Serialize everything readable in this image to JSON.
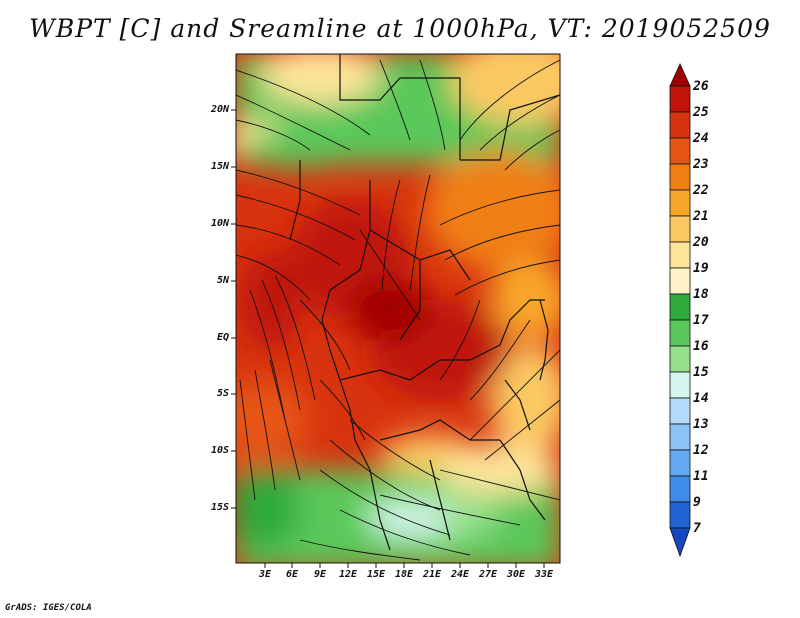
{
  "title": "WBPT [C] and Sreamline at 1000hPa, VT: 2019052509",
  "lat_labels": [
    "20N",
    "15N",
    "10N",
    "5N",
    "EQ",
    "5S",
    "10S",
    "15S"
  ],
  "lon_labels": [
    "3E",
    "6E",
    "9E",
    "12E",
    "15E",
    "18E",
    "21E",
    "24E",
    "27E",
    "30E",
    "33E"
  ],
  "colorbar": {
    "labels": [
      "26",
      "25",
      "24",
      "23",
      "22",
      "21",
      "20",
      "19",
      "18",
      "17",
      "16",
      "15",
      "14",
      "13",
      "12",
      "11",
      "9",
      "7"
    ],
    "colors": [
      "#a00000",
      "#c0140a",
      "#d8330f",
      "#e65514",
      "#f07f14",
      "#f8a62a",
      "#fbc964",
      "#fde59a",
      "#2faa3c",
      "#5ac85a",
      "#96e08c",
      "#d4f4ee",
      "#b4dcfa",
      "#8cc4f8",
      "#64aaf2",
      "#3c8ce8",
      "#2064d4",
      "#1648c0"
    ]
  },
  "credit": "GrADS: IGES/COLA"
}
